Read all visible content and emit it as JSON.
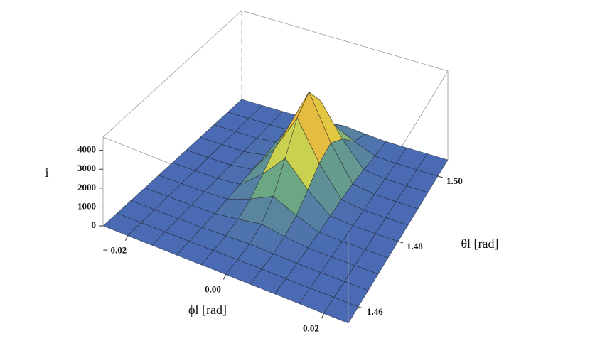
{
  "chart_data": {
    "type": "surface",
    "xlabel": "ϕl [rad]",
    "ylabel": "θl [rad]",
    "zlabel": "i",
    "x": [
      -0.025,
      -0.02,
      -0.015,
      -0.01,
      -0.005,
      0,
      0.005,
      0.01,
      0.015,
      0.02,
      0.025
    ],
    "y": [
      1.455,
      1.46,
      1.465,
      1.47,
      1.475,
      1.48,
      1.485,
      1.49,
      1.495,
      1.5,
      1.505
    ],
    "z": [
      [
        0,
        0,
        0,
        0,
        1,
        2,
        1,
        0,
        0,
        0,
        0
      ],
      [
        0,
        0,
        0,
        1,
        8,
        17,
        8,
        1,
        0,
        0,
        0
      ],
      [
        0,
        0,
        0,
        4,
        41,
        90,
        41,
        4,
        0,
        0,
        0
      ],
      [
        0,
        0,
        0,
        16,
        167,
        366,
        167,
        16,
        0,
        0,
        0
      ],
      [
        0,
        0,
        1,
        47,
        490,
        1071,
        490,
        47,
        1,
        0,
        0
      ],
      [
        0,
        0,
        2,
        102,
        1061,
        2318,
        1061,
        102,
        2,
        0,
        0
      ],
      [
        0,
        0,
        3,
        162,
        1688,
        3685,
        1688,
        162,
        3,
        0,
        0
      ],
      [
        0,
        0,
        4,
        189,
        1969,
        4300,
        1969,
        189,
        4,
        0,
        0
      ],
      [
        0,
        0,
        3,
        134,
        1392,
        3040,
        1392,
        134,
        3,
        0,
        0
      ],
      [
        0,
        0,
        1,
        47,
        490,
        1071,
        490,
        47,
        1,
        0,
        0
      ],
      [
        0,
        0,
        0,
        8,
        87,
        189,
        87,
        8,
        0,
        0,
        0
      ]
    ],
    "xlim": [
      -0.025,
      0.025
    ],
    "ylim": [
      1.455,
      1.505
    ],
    "zlim": [
      0,
      4700
    ],
    "xticks": [
      {
        "value": -0.02,
        "label": "− 0.02"
      },
      {
        "value": 0,
        "label": "0.00"
      },
      0.02
    ],
    "yticks": [
      1.46,
      1.48,
      {
        "value": 1.5,
        "label": "1.50"
      }
    ],
    "zticks": [
      0,
      1000,
      2000,
      3000,
      4000
    ]
  }
}
